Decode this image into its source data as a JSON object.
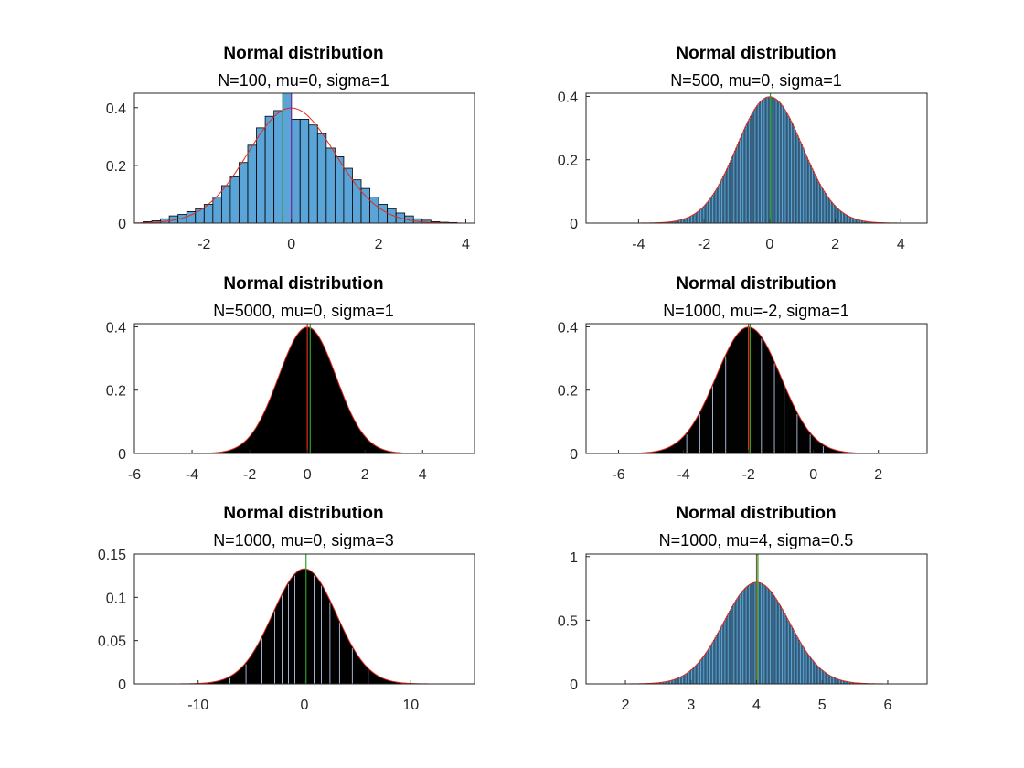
{
  "figure": {
    "layout": "3x2 grid of histogram panels"
  },
  "chart_data": [
    {
      "type": "bar",
      "title": "Normal distribution",
      "subtitle": "N=100, mu=0, sigma=1",
      "N": 100,
      "mu": 0,
      "sigma": 1,
      "xlim": [
        -3.6,
        4.2
      ],
      "ylim": [
        0,
        0.45
      ],
      "xticks": [
        -2,
        0,
        2,
        4
      ],
      "yticks": [
        0,
        0.2,
        0.4
      ],
      "ytick_labels": [
        "0",
        "0.2",
        "0.4"
      ],
      "bar_fill": "#5aa4d8",
      "bar_edge": "#000000",
      "bin_width": 0.2,
      "histogram": {
        "x": [
          -3.3,
          -3.1,
          -2.9,
          -2.7,
          -2.5,
          -2.3,
          -2.1,
          -1.9,
          -1.7,
          -1.5,
          -1.3,
          -1.1,
          -0.9,
          -0.7,
          -0.5,
          -0.3,
          -0.1,
          0.1,
          0.3,
          0.5,
          0.7,
          0.9,
          1.1,
          1.3,
          1.5,
          1.7,
          1.9,
          2.1,
          2.3,
          2.5,
          2.7,
          2.9,
          3.1,
          3.3,
          3.5,
          3.7
        ],
        "y": [
          0.005,
          0.008,
          0.015,
          0.025,
          0.03,
          0.04,
          0.05,
          0.065,
          0.09,
          0.13,
          0.16,
          0.21,
          0.27,
          0.33,
          0.37,
          0.39,
          0.45,
          0.36,
          0.36,
          0.34,
          0.31,
          0.26,
          0.23,
          0.19,
          0.15,
          0.12,
          0.09,
          0.065,
          0.05,
          0.035,
          0.025,
          0.015,
          0.01,
          0.005,
          0.003,
          0.002
        ]
      },
      "pdf_color": "#e32a1c",
      "mean_line_color": "#2ca02c",
      "mu_line_color": "#7b2fa0"
    },
    {
      "type": "bar",
      "title": "Normal distribution",
      "subtitle": "N=500, mu=0, sigma=1",
      "N": 500,
      "mu": 0,
      "sigma": 1,
      "xlim": [
        -5.6,
        4.8
      ],
      "ylim": [
        0,
        0.41
      ],
      "xticks": [
        -4,
        -2,
        0,
        2,
        4
      ],
      "yticks": [
        0,
        0.2,
        0.4
      ],
      "ytick_labels": [
        "0",
        "0.2",
        "0.4"
      ],
      "bar_fill": "#5aa4d8",
      "bar_edge": "#000000",
      "bin_width": 0.04,
      "hist_range": [
        -4.4,
        4.4
      ],
      "pdf_color": "#e32a1c",
      "mean_line_color": "#2ca02c",
      "mean_line_x": 0.02
    },
    {
      "type": "bar",
      "title": "Normal distribution",
      "subtitle": "N=5000, mu=0, sigma=1",
      "N": 5000,
      "mu": 0,
      "sigma": 1,
      "xlim": [
        -6,
        5.8
      ],
      "ylim": [
        0,
        0.41
      ],
      "xticks": [
        -6,
        -4,
        -2,
        0,
        2,
        4
      ],
      "yticks": [
        0,
        0.2,
        0.4
      ],
      "ytick_labels": [
        "0",
        "0.2",
        "0.4"
      ],
      "bar_fill": "#000000",
      "bar_edge": "#000000",
      "bin_width": 0.004,
      "hist_range": [
        -5.4,
        5.4
      ],
      "pdf_color": "#e32a1c",
      "mean_line_color": "#2ca02c",
      "mean_line_x": 0.1,
      "mu_line_color": "#e32a1c"
    },
    {
      "type": "bar",
      "title": "Normal distribution",
      "subtitle": "N=1000, mu=-2, sigma=1",
      "N": 1000,
      "mu": -2,
      "sigma": 1,
      "xlim": [
        -7,
        3.5
      ],
      "ylim": [
        0,
        0.41
      ],
      "xticks": [
        -6,
        -4,
        -2,
        0,
        2
      ],
      "yticks": [
        0,
        0.2,
        0.4
      ],
      "ytick_labels": [
        "0",
        "0.2",
        "0.4"
      ],
      "bar_fill": "#000000",
      "bar_edge": "#000000",
      "bin_width": 0.01,
      "hist_range": [
        -6.6,
        3.1
      ],
      "white_gaps": [
        -4.2,
        -3.9,
        -3.5,
        -3.1,
        -2.7,
        -1.6,
        -1.2,
        -0.9,
        -0.5,
        -0.1,
        0.3
      ],
      "pdf_color": "#e32a1c",
      "mean_line_color": "#2ca02c",
      "mean_line_x": -1.95,
      "mu_line_color": "#e32a1c"
    },
    {
      "type": "bar",
      "title": "Normal distribution",
      "subtitle": "N=1000, mu=0, sigma=3",
      "N": 1000,
      "mu": 0,
      "sigma": 3,
      "xlim": [
        -16,
        16
      ],
      "ylim": [
        0,
        0.15
      ],
      "xticks": [
        -10,
        0,
        10
      ],
      "yticks": [
        0,
        0.05,
        0.1,
        0.15
      ],
      "ytick_labels": [
        "0",
        "0.05",
        "0.1",
        "0.15"
      ],
      "bar_fill": "#000000",
      "bar_edge": "#000000",
      "bin_width": 0.03,
      "hist_range": [
        -14,
        14
      ],
      "white_gaps": [
        -7,
        -5.5,
        -4,
        -2.8,
        -2.1,
        -1.5,
        -0.9,
        0.9,
        1.6,
        2.4,
        3.3,
        4.5,
        6
      ],
      "pdf_color": "#e32a1c",
      "mean_line_color": "#2ca02c",
      "mean_line_x": 0.15
    },
    {
      "type": "bar",
      "title": "Normal distribution",
      "subtitle": "N=1000, mu=4, sigma=0.5",
      "N": 1000,
      "mu": 4,
      "sigma": 0.5,
      "xlim": [
        1.4,
        6.6
      ],
      "ylim": [
        0,
        1.02
      ],
      "xticks": [
        2,
        3,
        4,
        5,
        6
      ],
      "yticks": [
        0,
        0.5,
        1
      ],
      "ytick_labels": [
        "0",
        "0.5",
        "1"
      ],
      "bar_fill": "#5aa4d8",
      "bar_edge": "#000000",
      "bin_width": 0.02,
      "hist_range": [
        1.6,
        6.3
      ],
      "pdf_color": "#e32a1c",
      "mean_line_color": "#2ca02c",
      "mean_line_x": 4.02,
      "mu_line_color": "#8b5a2b"
    }
  ]
}
